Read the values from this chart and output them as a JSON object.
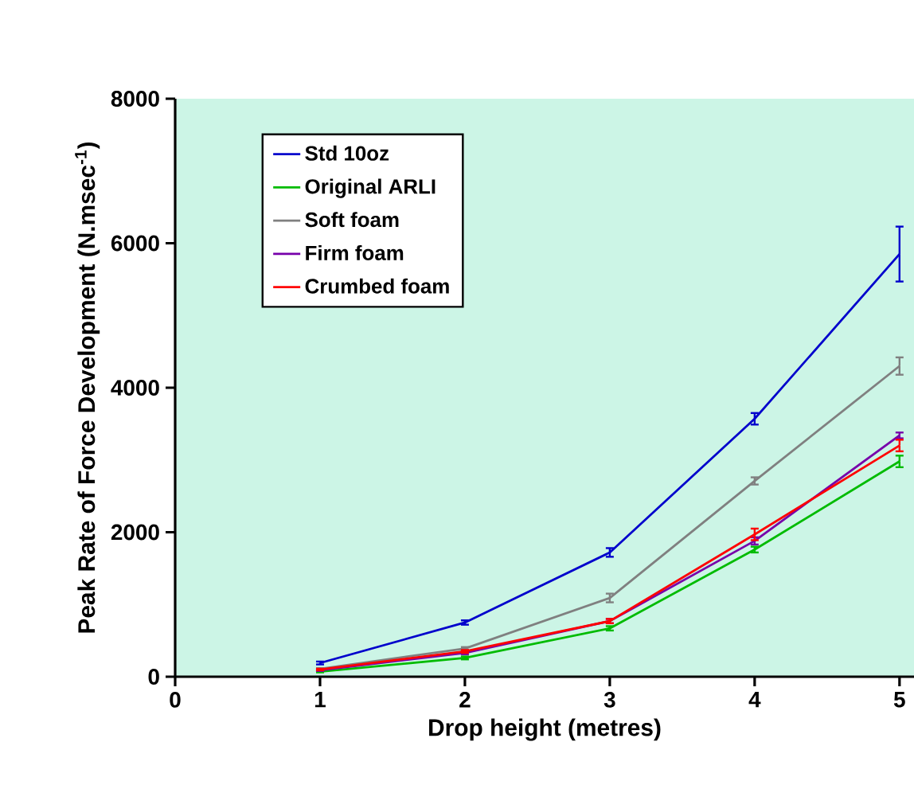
{
  "chart_data": {
    "type": "line",
    "xlabel": "Drop  height (metres)",
    "ylabel": "Peak Rate of Force Development (N.msec$^{-1}$)",
    "x": [
      1,
      2,
      3,
      4,
      5
    ],
    "xlim": [
      0,
      5.1
    ],
    "xticks": [
      0,
      1,
      2,
      3,
      4,
      5
    ],
    "ylim": [
      0,
      8000
    ],
    "yticks": [
      0,
      2000,
      4000,
      6000,
      8000
    ],
    "grid": false,
    "legend": "top left",
    "marker": "none",
    "line_style": "solid",
    "series": [
      {
        "name": "Std 10oz",
        "color": "#0000cc",
        "values": [
          190,
          750,
          1720,
          3570,
          5850
        ],
        "errors": [
          20,
          30,
          60,
          80,
          380
        ]
      },
      {
        "name": "Original ARLI",
        "color": "#00bb00",
        "values": [
          70,
          260,
          670,
          1760,
          2980
        ],
        "errors": [
          10,
          20,
          30,
          40,
          80
        ]
      },
      {
        "name": "Soft foam",
        "color": "#808080",
        "values": [
          110,
          390,
          1090,
          2710,
          4300
        ],
        "errors": [
          10,
          20,
          60,
          50,
          120
        ]
      },
      {
        "name": "Firm foam",
        "color": "#7700aa",
        "values": [
          90,
          330,
          770,
          1880,
          3340
        ],
        "errors": [
          10,
          20,
          30,
          50,
          40
        ]
      },
      {
        "name": "Crumbed foam",
        "color": "#ff0000",
        "values": [
          100,
          350,
          770,
          1970,
          3200
        ],
        "errors": [
          10,
          20,
          30,
          80,
          80
        ]
      }
    ]
  }
}
